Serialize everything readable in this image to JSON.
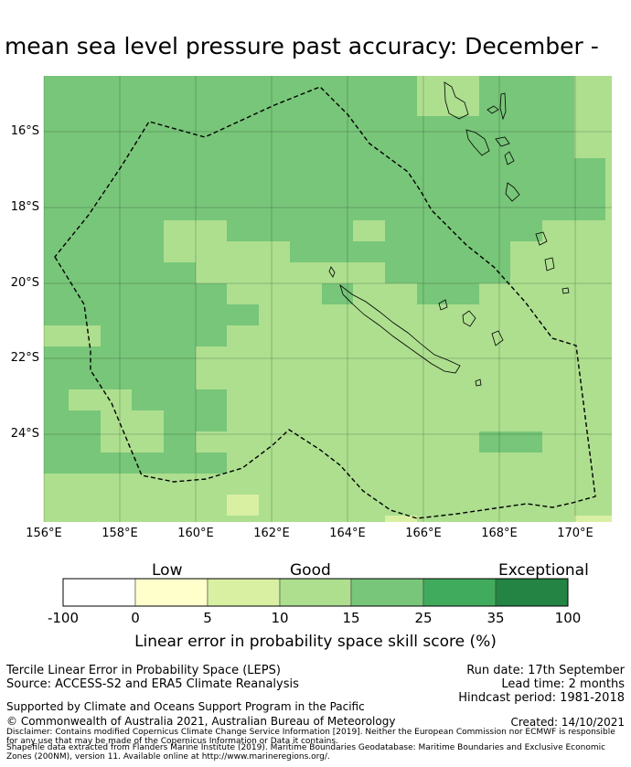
{
  "title": "ly mean sea level pressure past accuracy: December -",
  "map": {
    "lat_labels": [
      "16°S",
      "18°S",
      "20°S",
      "22°S",
      "24°S"
    ],
    "lon_labels": [
      "156°E",
      "158°E",
      "160°E",
      "162°E",
      "164°E",
      "166°E",
      "168°E",
      "170°E"
    ],
    "colors": {
      "band_10_15": "#addf8f",
      "band_15_25": "#78c679",
      "band_5_10": "#d9f0a3"
    }
  },
  "colorbar": {
    "categories": [
      "Low",
      "Good",
      "Exceptional"
    ],
    "ticks": [
      "-100",
      "0",
      "5",
      "10",
      "15",
      "25",
      "35",
      "100"
    ],
    "colors": [
      "#ffffff",
      "#ffffcc",
      "#d9f0a3",
      "#addf8f",
      "#78c679",
      "#41ab5d",
      "#238443"
    ],
    "label": "Linear error in probability space skill score (%)"
  },
  "info": {
    "left1": "Tercile Linear Error in Probability Space (LEPS)",
    "left2": "Source: ACCESS-S2 and ERA5 Climate Reanalysis",
    "right1": "Run date: 17th September",
    "right2": "Lead time: 2 months",
    "right3": "Hindcast period: 1981-2018",
    "support": "Supported by Climate and Oceans Support Program in the Pacific",
    "copyright": "© Commonwealth of Australia 2021, Australian Bureau of Meteorology",
    "created": "Created: 14/10/2021",
    "disclaimer": "Disclaimer: Contains modified Copernicus Climate Change Service Information [2019]. Neither the European Commission nor ECMWF is responsible for any use that may be made of the Copernicus Information or Data it contains.",
    "shapefile": "Shapefile data extracted from Flanders Marine Institute (2019). Maritime Boundaries Geodatabase: Maritime Boundaries and Exclusive Economic Zones (200NM), version 11. Available online at http://www.marineregions.org/."
  }
}
